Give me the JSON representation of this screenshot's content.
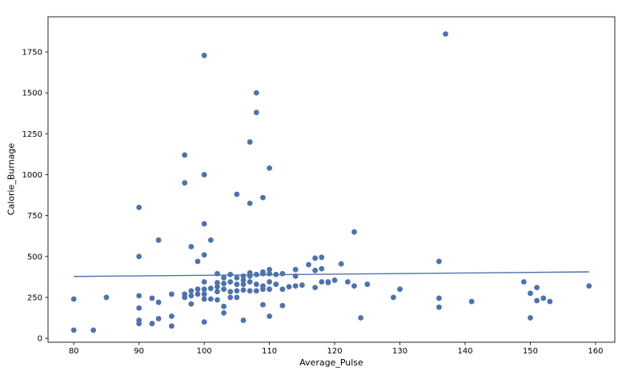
{
  "chart_data": {
    "type": "scatter",
    "title": "",
    "xlabel": "Average_Pulse",
    "ylabel": "Calorie_Burnage",
    "xlim": [
      76.05,
      162.95
    ],
    "ylim": [
      -24,
      1965
    ],
    "x_ticks": [
      80,
      90,
      100,
      110,
      120,
      130,
      140,
      150,
      160
    ],
    "y_ticks": [
      0,
      250,
      500,
      750,
      1000,
      1250,
      1500,
      1750
    ],
    "grid": false,
    "legend_position": "none",
    "marker_color": "#4c72b0",
    "line_color": "#4c72b0",
    "axis_color": "#262626",
    "tick_label_color": "#000000",
    "background_color": "#ffffff",
    "points": [
      [
        80,
        240
      ],
      [
        80,
        50
      ],
      [
        83,
        50
      ],
      [
        85,
        250
      ],
      [
        90,
        800
      ],
      [
        90,
        500
      ],
      [
        90,
        260
      ],
      [
        90,
        185
      ],
      [
        90,
        110
      ],
      [
        90,
        90
      ],
      [
        92,
        245
      ],
      [
        92,
        90
      ],
      [
        93,
        600
      ],
      [
        93,
        220
      ],
      [
        93,
        120
      ],
      [
        95,
        270
      ],
      [
        95,
        135
      ],
      [
        95,
        75
      ],
      [
        97,
        1120
      ],
      [
        97,
        950
      ],
      [
        97,
        270
      ],
      [
        97,
        250
      ],
      [
        98,
        560
      ],
      [
        98,
        290
      ],
      [
        98,
        260
      ],
      [
        98,
        210
      ],
      [
        99,
        470
      ],
      [
        99,
        300
      ],
      [
        99,
        270
      ],
      [
        100,
        1729
      ],
      [
        100,
        1000
      ],
      [
        100,
        700
      ],
      [
        100,
        510
      ],
      [
        100,
        345
      ],
      [
        100,
        300
      ],
      [
        100,
        270
      ],
      [
        100,
        240
      ],
      [
        100,
        100
      ],
      [
        101,
        600
      ],
      [
        101,
        305
      ],
      [
        101,
        240
      ],
      [
        102,
        395
      ],
      [
        102,
        340
      ],
      [
        102,
        315
      ],
      [
        102,
        285
      ],
      [
        102,
        235
      ],
      [
        103,
        370
      ],
      [
        103,
        335
      ],
      [
        103,
        300
      ],
      [
        103,
        195
      ],
      [
        103,
        155
      ],
      [
        104,
        390
      ],
      [
        104,
        345
      ],
      [
        104,
        285
      ],
      [
        104,
        250
      ],
      [
        105,
        880
      ],
      [
        105,
        370
      ],
      [
        105,
        330
      ],
      [
        105,
        290
      ],
      [
        105,
        250
      ],
      [
        106,
        380
      ],
      [
        106,
        355
      ],
      [
        106,
        330
      ],
      [
        106,
        295
      ],
      [
        106,
        110
      ],
      [
        107,
        1200
      ],
      [
        107,
        825
      ],
      [
        107,
        400
      ],
      [
        107,
        380
      ],
      [
        107,
        345
      ],
      [
        107,
        290
      ],
      [
        108,
        1500
      ],
      [
        108,
        1380
      ],
      [
        108,
        390
      ],
      [
        108,
        330
      ],
      [
        108,
        290
      ],
      [
        109,
        860
      ],
      [
        109,
        405
      ],
      [
        109,
        395
      ],
      [
        109,
        320
      ],
      [
        109,
        300
      ],
      [
        109,
        205
      ],
      [
        110,
        1040
      ],
      [
        110,
        420
      ],
      [
        110,
        395
      ],
      [
        110,
        345
      ],
      [
        110,
        300
      ],
      [
        110,
        135
      ],
      [
        111,
        390
      ],
      [
        111,
        330
      ],
      [
        112,
        395
      ],
      [
        112,
        300
      ],
      [
        112,
        200
      ],
      [
        113,
        315
      ],
      [
        114,
        420
      ],
      [
        114,
        380
      ],
      [
        114,
        320
      ],
      [
        115,
        325
      ],
      [
        116,
        450
      ],
      [
        117,
        490
      ],
      [
        117,
        415
      ],
      [
        117,
        310
      ],
      [
        118,
        495
      ],
      [
        118,
        425
      ],
      [
        118,
        345
      ],
      [
        119,
        345
      ],
      [
        119,
        340
      ],
      [
        120,
        355
      ],
      [
        121,
        455
      ],
      [
        122,
        345
      ],
      [
        123,
        650
      ],
      [
        123,
        320
      ],
      [
        124,
        125
      ],
      [
        125,
        330
      ],
      [
        129,
        250
      ],
      [
        130,
        300
      ],
      [
        136,
        470
      ],
      [
        136,
        245
      ],
      [
        136,
        190
      ],
      [
        137,
        1860
      ],
      [
        141,
        225
      ],
      [
        149,
        345
      ],
      [
        150,
        275
      ],
      [
        150,
        125
      ],
      [
        151,
        310
      ],
      [
        151,
        230
      ],
      [
        152,
        245
      ],
      [
        153,
        225
      ],
      [
        159,
        320
      ]
    ],
    "regression_line": {
      "x": [
        80,
        159
      ],
      "y": [
        378,
        406
      ]
    }
  }
}
